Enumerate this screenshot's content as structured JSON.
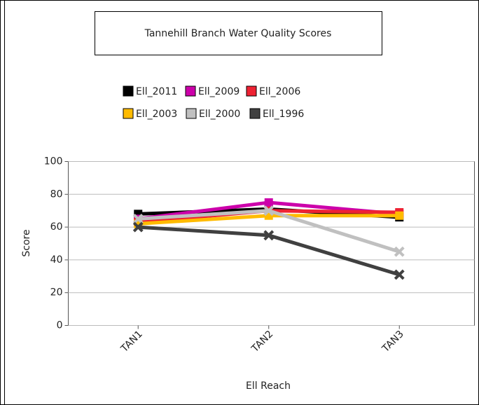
{
  "chart_data": {
    "type": "line",
    "title": "Tannehill Branch Water Quality Scores",
    "categories": [
      "TAN1",
      "TAN2",
      "TAN3"
    ],
    "series": [
      {
        "name": "Ell_2011",
        "color": "#000000",
        "values": [
          68,
          71,
          66
        ]
      },
      {
        "name": "Ell_2009",
        "color": "#cc00aa",
        "values": [
          65,
          75,
          68
        ]
      },
      {
        "name": "Ell_2006",
        "color": "#ee2233",
        "values": [
          63,
          70,
          69
        ]
      },
      {
        "name": "Ell_2003",
        "color": "#ffbb00",
        "values": [
          62,
          67,
          67
        ]
      },
      {
        "name": "Ell_2000",
        "color": "#c0c0c0",
        "values": [
          65,
          70,
          45
        ]
      },
      {
        "name": "Ell_1996",
        "color": "#404040",
        "values": [
          60,
          55,
          31
        ]
      }
    ],
    "x_label": "Ell Reach",
    "y_label": "Score",
    "ylim": [
      0,
      100
    ],
    "yticks": [
      0,
      20,
      40,
      60,
      80,
      100
    ],
    "grid": true
  }
}
